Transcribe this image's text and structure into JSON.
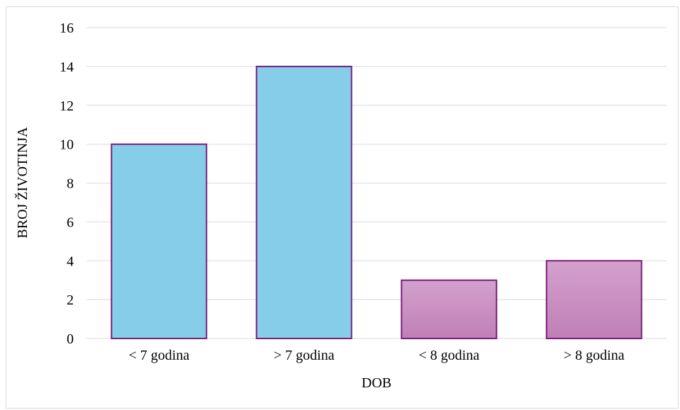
{
  "chart_data": {
    "type": "bar",
    "title": "",
    "xlabel": "DOB",
    "ylabel": "BROJ ŽIVOTINJA",
    "categories": [
      "< 7 godina",
      "> 7 godina",
      "< 8 godina",
      "> 8 godina"
    ],
    "values": [
      10,
      14,
      3,
      4
    ],
    "ylim": [
      0,
      16
    ],
    "yticks": [
      "0",
      "2",
      "4",
      "6",
      "8",
      "10",
      "12",
      "14",
      "16"
    ],
    "grid": true,
    "legend": "none",
    "bar_colors": [
      {
        "fill_top": "#86cdea",
        "fill_bottom": "#86cdea"
      },
      {
        "fill_top": "#86cdea",
        "fill_bottom": "#86cdea"
      },
      {
        "fill_top": "#d3a1cd",
        "fill_bottom": "#c07fb6"
      },
      {
        "fill_top": "#d3a1cd",
        "fill_bottom": "#c07fb6"
      }
    ],
    "bar_outline_color": "#7a1f7a",
    "gridline_color": "#d9d9d9"
  }
}
